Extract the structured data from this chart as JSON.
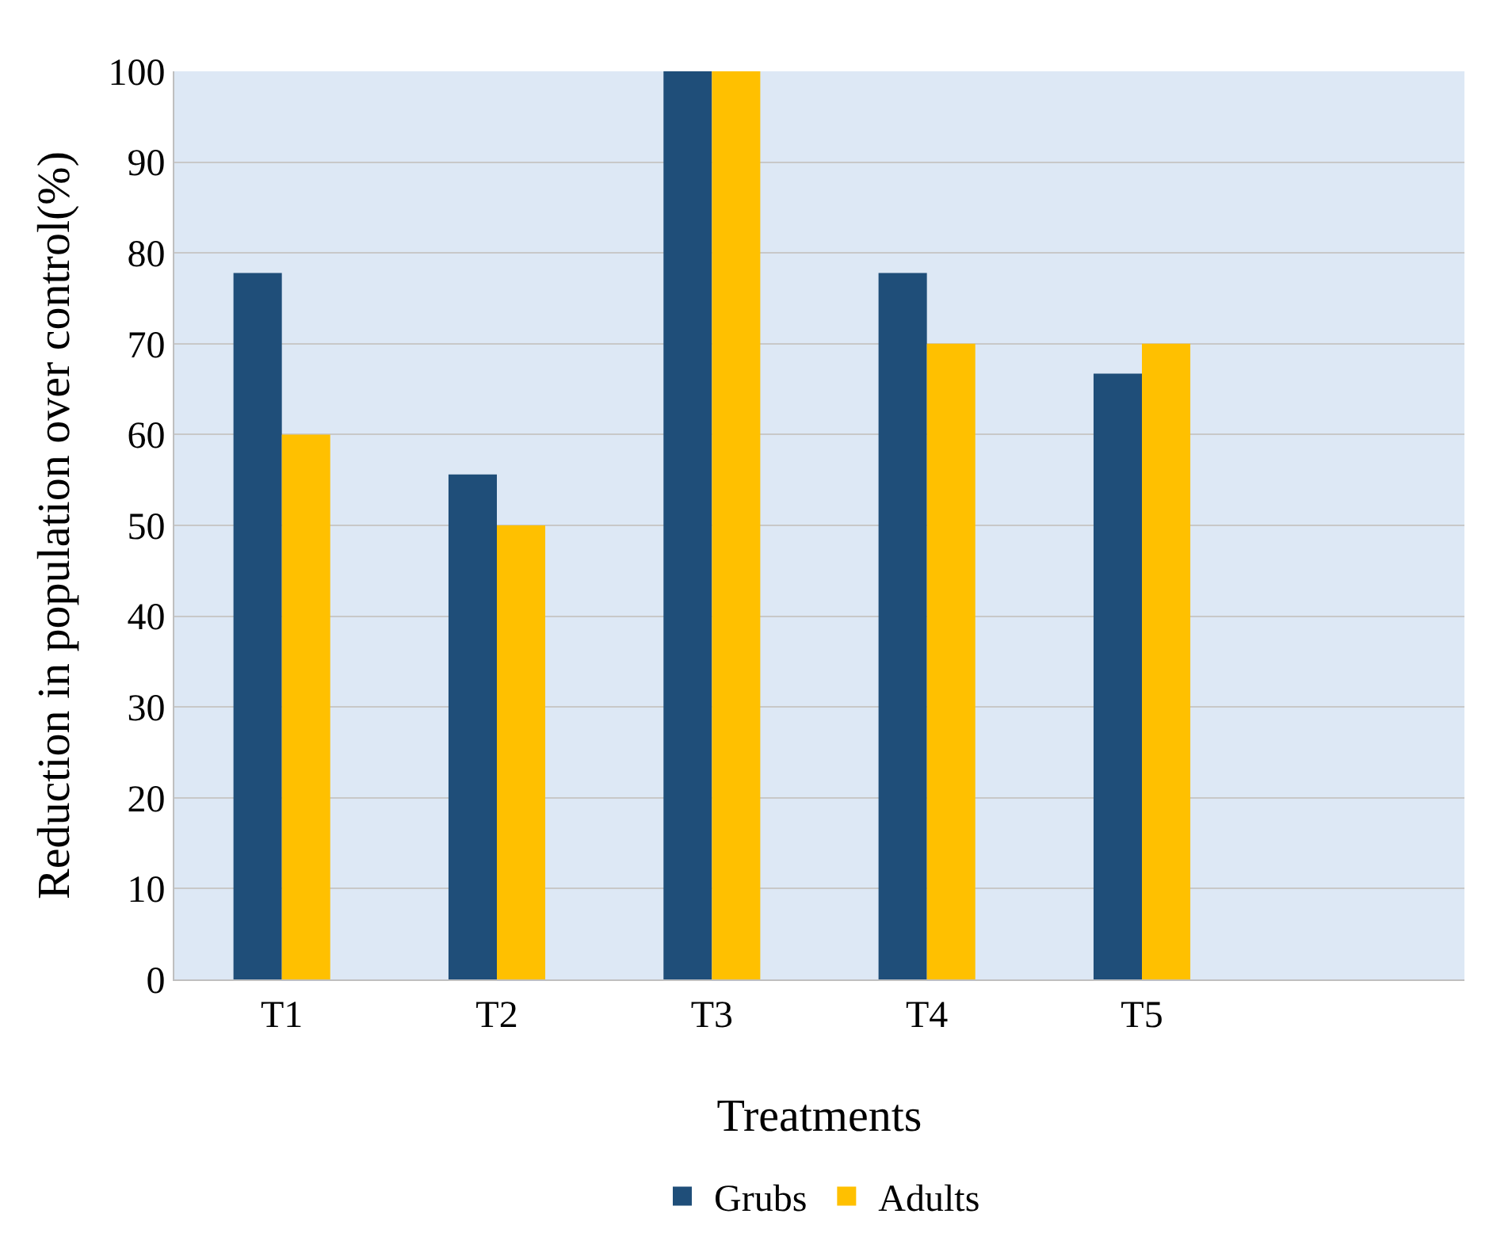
{
  "chart_data": {
    "type": "bar",
    "xlabel": "Treatments",
    "ylabel": "Reduction in population over control(%)",
    "categories": [
      "T1",
      "T2",
      "T3",
      "T4",
      "T5"
    ],
    "series": [
      {
        "name": "Grubs",
        "color": "#1f4e79",
        "values": [
          77.8,
          55.6,
          100,
          77.8,
          66.7
        ]
      },
      {
        "name": "Adults",
        "color": "#ffc000",
        "values": [
          60,
          50,
          100,
          70,
          70
        ]
      }
    ],
    "ylim": [
      0,
      100
    ],
    "yticks": [
      0,
      10,
      20,
      30,
      40,
      50,
      60,
      70,
      80,
      90,
      100
    ],
    "grid": "y",
    "legend": "bottom"
  }
}
